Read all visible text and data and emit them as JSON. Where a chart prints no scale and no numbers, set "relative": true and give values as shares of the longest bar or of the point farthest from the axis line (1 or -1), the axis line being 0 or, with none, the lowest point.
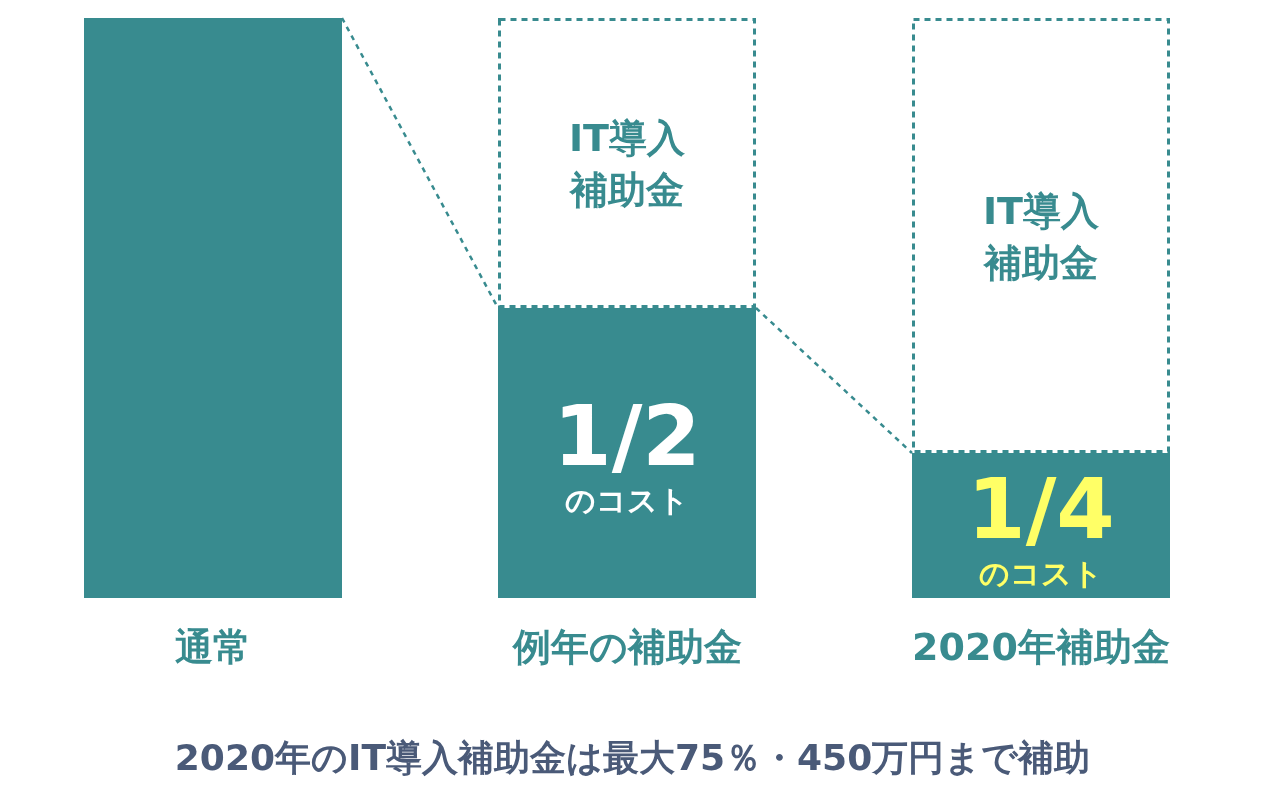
{
  "chart_data": {
    "type": "bar",
    "stacked": true,
    "relative": true,
    "categories": [
      "通常",
      "例年の補助金",
      "2020年補助金"
    ],
    "series": [
      {
        "color": "#388b8f",
        "values": [
          1,
          0.5,
          0.25
        ],
        "value_labels": [
          null,
          [
            "1/2",
            "のコスト"
          ],
          [
            "1/4",
            "のコスト"
          ]
        ]
      },
      {
        "color": "#ffffff",
        "line_style": "dashed",
        "values": [
          null,
          0.5,
          0.75
        ],
        "value_labels": [
          null,
          [
            "IT導入",
            "補助金"
          ],
          [
            "IT導入",
            "補助金"
          ]
        ]
      }
    ],
    "annotations": [
      "2020年のIT導入補助金は最大75％・450万円まで補助"
    ]
  }
}
